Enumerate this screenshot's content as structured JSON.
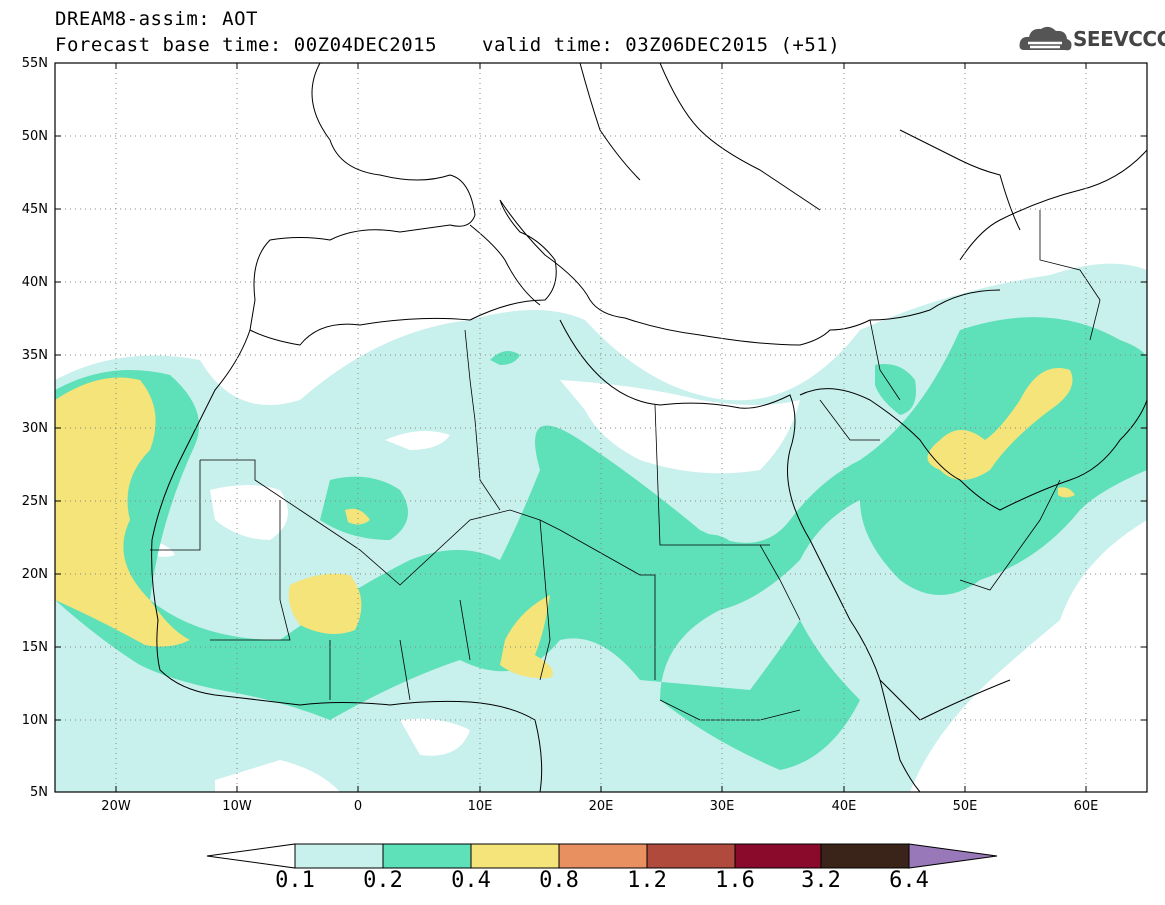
{
  "header": {
    "title_line1": "DREAM8-assim: AOT",
    "title_line2": "Forecast base time: 00Z04DEC2015",
    "valid_time": "valid time: 03Z06DEC2015 (+51)",
    "logo_text": "SEEVCCC"
  },
  "map": {
    "variable": "AOT",
    "lat_labels": [
      "55N",
      "50N",
      "45N",
      "40N",
      "35N",
      "30N",
      "25N",
      "20N",
      "15N",
      "10N",
      "5N"
    ],
    "lon_labels": [
      "20W",
      "10W",
      "0",
      "10E",
      "20E",
      "30E",
      "40E",
      "50E",
      "60E"
    ],
    "lon_range": [
      -25,
      65
    ],
    "lat_range": [
      5,
      55
    ],
    "grid": "dotted"
  },
  "colorbar": {
    "labels": [
      "0.1",
      "0.2",
      "0.4",
      "0.8",
      "1.2",
      "1.6",
      "3.2",
      "6.4"
    ],
    "colors": [
      "#c8f0ec",
      "#5ee0b8",
      "#f5e47a",
      "#e8905f",
      "#b04a3c",
      "#8a0a2c",
      "#3a2318",
      "#9878b8"
    ]
  }
}
